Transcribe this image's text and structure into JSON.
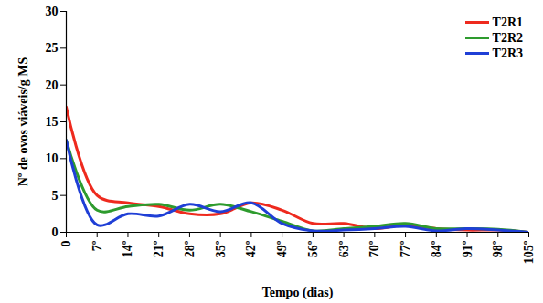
{
  "chart_data": {
    "type": "line",
    "x_label": "Tempo (dias)",
    "y_label": "Nº de ovos viáveis/g MS",
    "x": [
      0,
      7,
      14,
      21,
      28,
      35,
      42,
      49,
      56,
      63,
      70,
      77,
      84,
      91,
      98,
      105
    ],
    "series": [
      {
        "name": "T2R1",
        "color": "#ee2a1e",
        "values": [
          17,
          5,
          4,
          3.5,
          2.5,
          2.5,
          4,
          3,
          1.2,
          1.2,
          0.5,
          1,
          0.5,
          0.3,
          0.3,
          0
        ]
      },
      {
        "name": "T2R2",
        "color": "#2e9b2e",
        "values": [
          12.5,
          3,
          3.5,
          3.8,
          3,
          3.8,
          2.8,
          1.5,
          0.2,
          0.5,
          0.8,
          1.2,
          0.5,
          0.5,
          0.4,
          0
        ]
      },
      {
        "name": "T2R3",
        "color": "#1f3fd6",
        "values": [
          12.5,
          1,
          2.5,
          2.2,
          3.8,
          2.8,
          4,
          1.2,
          0.2,
          0.3,
          0.5,
          0.8,
          0.2,
          0.5,
          0.3,
          0
        ]
      }
    ],
    "xlim": [
      0,
      105
    ],
    "xticks": [
      0,
      {
        "value": 7,
        "label": "7º"
      },
      {
        "value": 14,
        "label": "14º"
      },
      {
        "value": 21,
        "label": "21º"
      },
      {
        "value": 28,
        "label": "28º"
      },
      {
        "value": 35,
        "label": "35º"
      },
      {
        "value": 42,
        "label": "42º"
      },
      {
        "value": 49,
        "label": "49º"
      },
      {
        "value": 56,
        "label": "56º"
      },
      {
        "value": 63,
        "label": "63º"
      },
      {
        "value": 70,
        "label": "70º"
      },
      {
        "value": 77,
        "label": "77º"
      },
      {
        "value": 84,
        "label": "84º"
      },
      {
        "value": 91,
        "label": "91º"
      },
      {
        "value": 98,
        "label": "98º"
      },
      {
        "value": 105,
        "label": "105º"
      }
    ],
    "ylim": [
      0,
      30
    ],
    "yticks": [
      0,
      5,
      10,
      15,
      20,
      25,
      30
    ],
    "grid": false,
    "legend": "top-right"
  }
}
